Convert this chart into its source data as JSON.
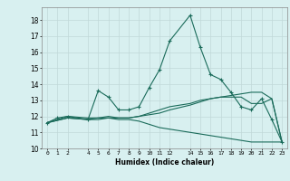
{
  "xlabel": "Humidex (Indice chaleur)",
  "bg_color": "#d8f0f0",
  "grid_color": "#c0d8d8",
  "line_color": "#1a6b5a",
  "x_ticks": [
    0,
    1,
    2,
    4,
    5,
    6,
    7,
    8,
    9,
    10,
    11,
    12,
    14,
    15,
    16,
    17,
    18,
    19,
    20,
    21,
    22,
    23
  ],
  "y_ticks": [
    10,
    11,
    12,
    13,
    14,
    15,
    16,
    17,
    18
  ],
  "xlim": [
    -0.5,
    23.5
  ],
  "ylim": [
    10.0,
    18.8
  ],
  "series": [
    {
      "x": [
        0,
        1,
        2,
        4,
        5,
        6,
        7,
        8,
        9,
        10,
        11,
        12,
        14,
        15,
        16,
        17,
        18,
        19,
        20,
        21,
        22,
        23
      ],
      "y": [
        11.6,
        11.9,
        12.0,
        11.8,
        13.6,
        13.2,
        12.4,
        12.4,
        12.6,
        13.8,
        14.9,
        16.7,
        18.3,
        16.3,
        14.6,
        14.3,
        13.5,
        12.6,
        12.4,
        13.1,
        11.8,
        10.4
      ],
      "has_markers": true
    },
    {
      "x": [
        0,
        2,
        4,
        5,
        6,
        7,
        8,
        9,
        10,
        11,
        12,
        14,
        15,
        16,
        17,
        18,
        19,
        20,
        21,
        22,
        23
      ],
      "y": [
        11.6,
        12.0,
        11.9,
        11.9,
        11.9,
        11.9,
        11.9,
        12.0,
        12.1,
        12.2,
        12.4,
        12.7,
        12.9,
        13.1,
        13.2,
        13.3,
        13.4,
        13.5,
        13.5,
        13.1,
        10.4
      ],
      "has_markers": false
    },
    {
      "x": [
        0,
        2,
        4,
        5,
        6,
        7,
        8,
        9,
        10,
        11,
        12,
        14,
        15,
        16,
        17,
        18,
        19,
        20,
        21,
        22,
        23
      ],
      "y": [
        11.6,
        11.9,
        11.8,
        11.8,
        11.9,
        11.8,
        11.8,
        11.7,
        11.5,
        11.3,
        11.2,
        11.0,
        10.9,
        10.8,
        10.7,
        10.6,
        10.5,
        10.4,
        10.4,
        10.4,
        10.4
      ],
      "has_markers": false
    },
    {
      "x": [
        0,
        2,
        4,
        5,
        6,
        7,
        8,
        9,
        10,
        11,
        12,
        14,
        15,
        16,
        17,
        18,
        19,
        20,
        21,
        22,
        23
      ],
      "y": [
        11.6,
        11.9,
        11.8,
        11.9,
        12.0,
        11.9,
        11.9,
        12.0,
        12.2,
        12.4,
        12.6,
        12.8,
        13.0,
        13.1,
        13.2,
        13.2,
        13.2,
        12.8,
        12.8,
        13.1,
        10.4
      ],
      "has_markers": false
    }
  ]
}
